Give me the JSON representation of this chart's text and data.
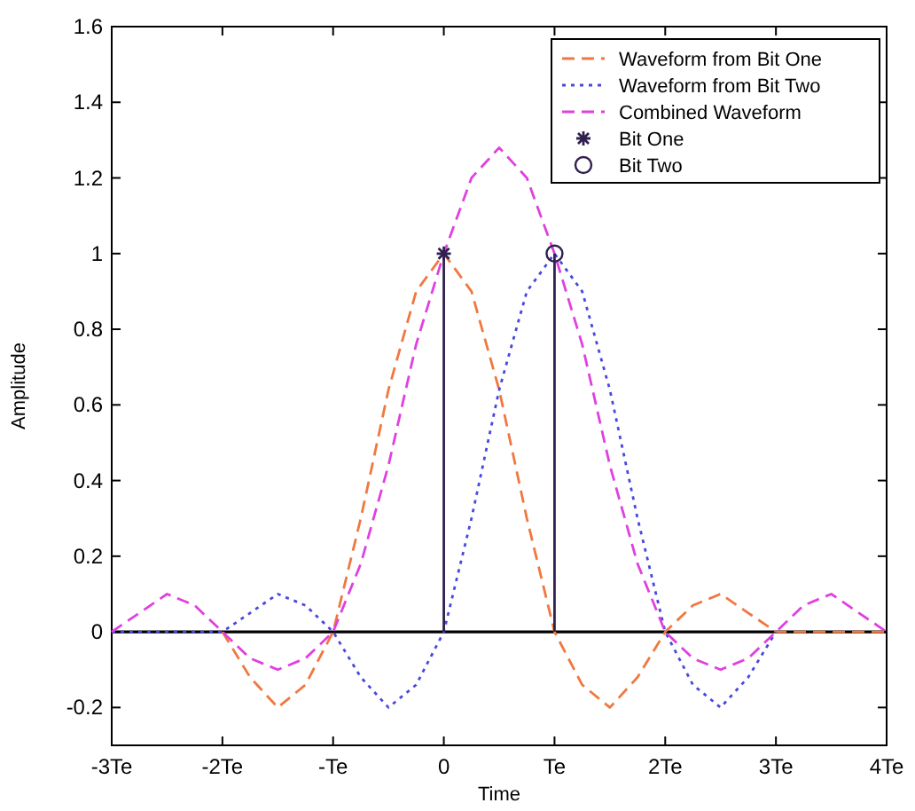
{
  "chart_data": {
    "type": "line",
    "xlabel": "Time",
    "ylabel": "Amplitude",
    "x": [
      -3,
      -2.75,
      -2.5,
      -2.25,
      -2,
      -1.75,
      -1.5,
      -1.25,
      -1,
      -0.75,
      -0.5,
      -0.25,
      0,
      0.25,
      0.5,
      0.75,
      1,
      1.25,
      1.5,
      1.75,
      2,
      2.25,
      2.5,
      2.75,
      3,
      3.25,
      3.5,
      3.75,
      4
    ],
    "series": [
      {
        "name": "Waveform from Bit One",
        "color": "#f07840",
        "line_style": "dashed",
        "values": [
          null,
          null,
          null,
          null,
          0,
          -0.12,
          -0.2,
          -0.14,
          0,
          0.3,
          0.64,
          0.9,
          1,
          0.9,
          0.64,
          0.3,
          0,
          -0.14,
          -0.2,
          -0.12,
          0,
          0.07,
          0.1,
          0.05,
          0,
          0,
          0,
          0,
          0
        ]
      },
      {
        "name": "Waveform from Bit Two",
        "color": "#4848e0",
        "line_style": "dotted",
        "values": [
          0,
          0,
          0,
          0,
          0,
          0.05,
          0.1,
          0.07,
          0,
          -0.12,
          -0.2,
          -0.14,
          0,
          0.3,
          0.64,
          0.9,
          1,
          0.9,
          0.64,
          0.3,
          0,
          -0.14,
          -0.2,
          -0.12,
          0,
          null,
          null,
          null,
          null
        ]
      },
      {
        "name": "Combined Waveform",
        "color": "#e040e0",
        "line_style": "dashed",
        "values": [
          0,
          0.05,
          0.1,
          0.07,
          0,
          -0.07,
          -0.1,
          -0.07,
          0,
          0.18,
          0.44,
          0.76,
          1,
          1.2,
          1.28,
          1.2,
          1,
          0.76,
          0.44,
          0.18,
          0,
          -0.07,
          -0.1,
          -0.07,
          0,
          0.07,
          0.1,
          0.05,
          0
        ]
      },
      {
        "name": "Bit One",
        "type": "lollipop",
        "marker": "cross",
        "color": "#302050",
        "x": [
          0
        ],
        "values": [
          1
        ]
      },
      {
        "name": "Bit Two",
        "type": "lollipop",
        "marker": "circle",
        "color": "#302050",
        "x": [
          1
        ],
        "values": [
          1
        ]
      }
    ],
    "xlim": [
      -3,
      4
    ],
    "xticks": [
      {
        "value": -3,
        "label": "-3Te"
      },
      {
        "value": -2,
        "label": "-2Te"
      },
      {
        "value": -1,
        "label": "-Te"
      },
      0,
      {
        "value": 1,
        "label": "Te"
      },
      {
        "value": 2,
        "label": "2Te"
      },
      {
        "value": 3,
        "label": "3Te"
      },
      {
        "value": 4,
        "label": "4Te"
      }
    ],
    "ylim": [
      -0.3,
      1.6
    ],
    "yticks": [
      -0.2,
      0,
      0.2,
      0.4,
      0.6,
      0.8,
      1,
      1.2,
      1.4,
      1.6
    ],
    "ref_lines": [
      {
        "axis": "y",
        "value": 0,
        "color": "#000000"
      }
    ],
    "legend": "top right",
    "grid": false
  }
}
